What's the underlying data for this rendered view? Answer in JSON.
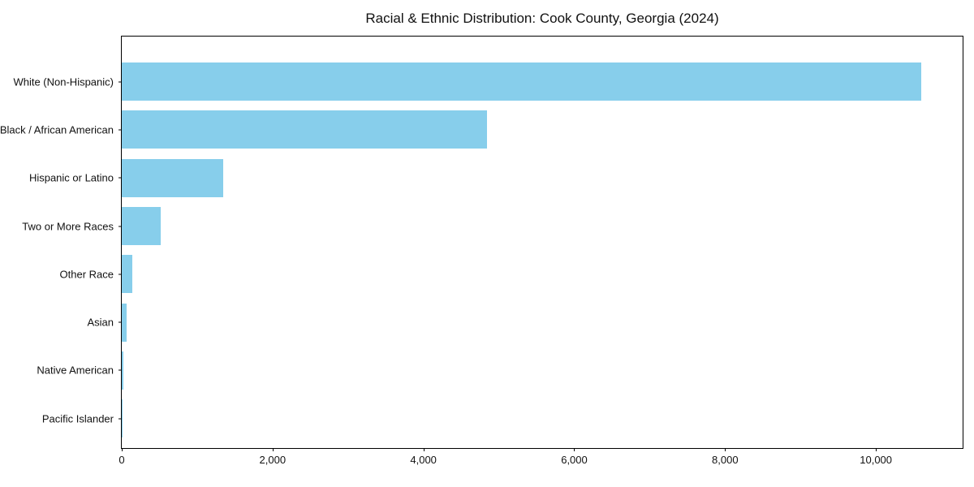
{
  "chart_data": {
    "type": "bar",
    "orientation": "horizontal",
    "title": "Racial & Ethnic Distribution: Cook County, Georgia (2024)",
    "categories": [
      "White (Non-Hispanic)",
      "Black / African American",
      "Hispanic or Latino",
      "Two or More Races",
      "Other Race",
      "Asian",
      "Native American",
      "Pacific Islander"
    ],
    "values": [
      10600,
      4840,
      1340,
      520,
      145,
      65,
      20,
      5
    ],
    "xlabel": "",
    "ylabel": "",
    "xlim": [
      0,
      11150
    ],
    "x_ticks": [
      0,
      2000,
      4000,
      6000,
      8000,
      10000
    ],
    "x_tick_labels": [
      "0",
      "2,000",
      "4,000",
      "6,000",
      "8,000",
      "10,000"
    ],
    "grid": false,
    "legend_position": "none",
    "bar_color": "#87CEEB",
    "background_color": "#ffffff",
    "spine_color": "#000000"
  }
}
